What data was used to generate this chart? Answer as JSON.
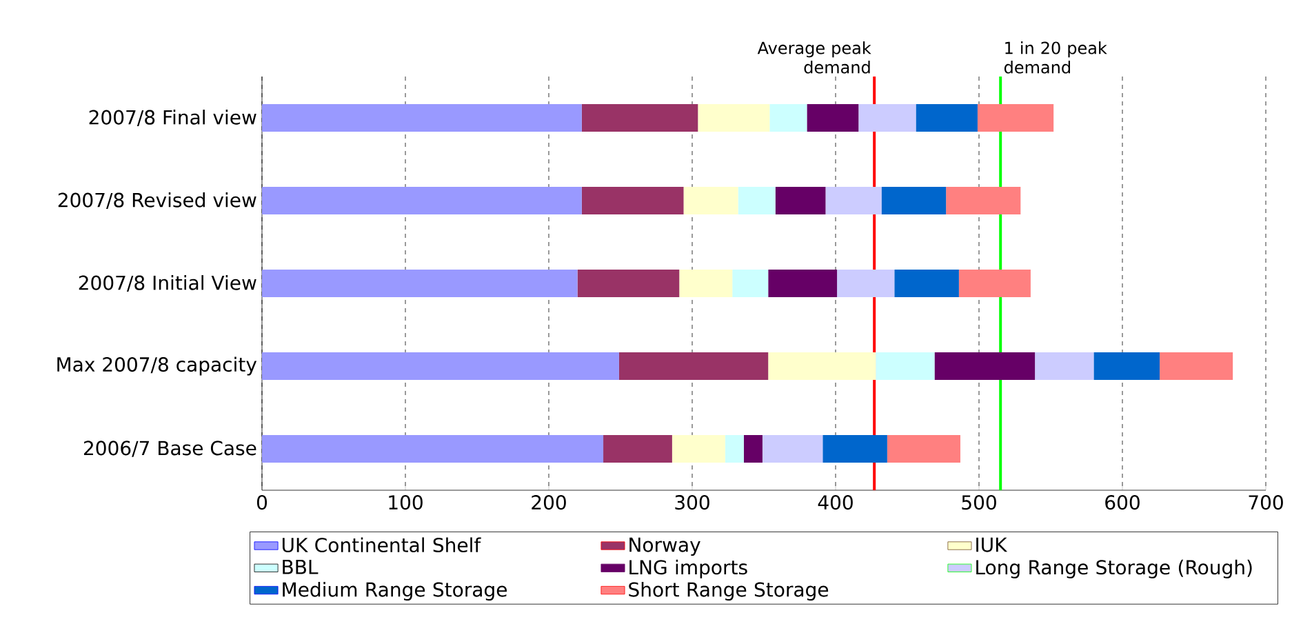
{
  "chart_data": {
    "type": "bar",
    "orientation": "horizontal",
    "stacked": true,
    "categories": [
      "2007/8 Final view",
      "2007/8 Revised view",
      "2007/8 Initial View",
      "Max 2007/8 capacity",
      "2006/7 Base Case"
    ],
    "series": [
      {
        "name": "UK Continental Shelf",
        "color": "#9999ff",
        "values": [
          223,
          223,
          220,
          249,
          238
        ]
      },
      {
        "name": "Norway",
        "color": "#993366",
        "values": [
          81,
          71,
          71,
          104,
          48
        ]
      },
      {
        "name": "IUK",
        "color": "#ffffcc",
        "values": [
          50,
          38,
          37,
          75,
          37
        ]
      },
      {
        "name": "BBL",
        "color": "#ccffff",
        "values": [
          26,
          26,
          25,
          41,
          13
        ]
      },
      {
        "name": "LNG imports",
        "color": "#660066",
        "values": [
          36,
          35,
          48,
          70,
          13
        ]
      },
      {
        "name": "Long Range Storage (Rough)",
        "color": "#ccccff",
        "values": [
          40,
          39,
          40,
          41,
          42
        ]
      },
      {
        "name": "Medium Range Storage",
        "color": "#0066cc",
        "values": [
          43,
          45,
          45,
          46,
          45
        ]
      },
      {
        "name": "Short Range Storage",
        "color": "#ff8080",
        "values": [
          53,
          52,
          50,
          51,
          51
        ]
      }
    ],
    "xlim": [
      0,
      700
    ],
    "xticks": [
      0,
      100,
      200,
      300,
      400,
      500,
      600,
      700
    ],
    "grid": "x",
    "legend": "bottom",
    "ref_lines": [
      {
        "axis": "x",
        "value": 427,
        "label": "Average peak demand",
        "color": "#ff0000"
      },
      {
        "axis": "x",
        "value": 515,
        "label": "1 in 20 peak demand",
        "color": "#00ff00"
      }
    ]
  }
}
